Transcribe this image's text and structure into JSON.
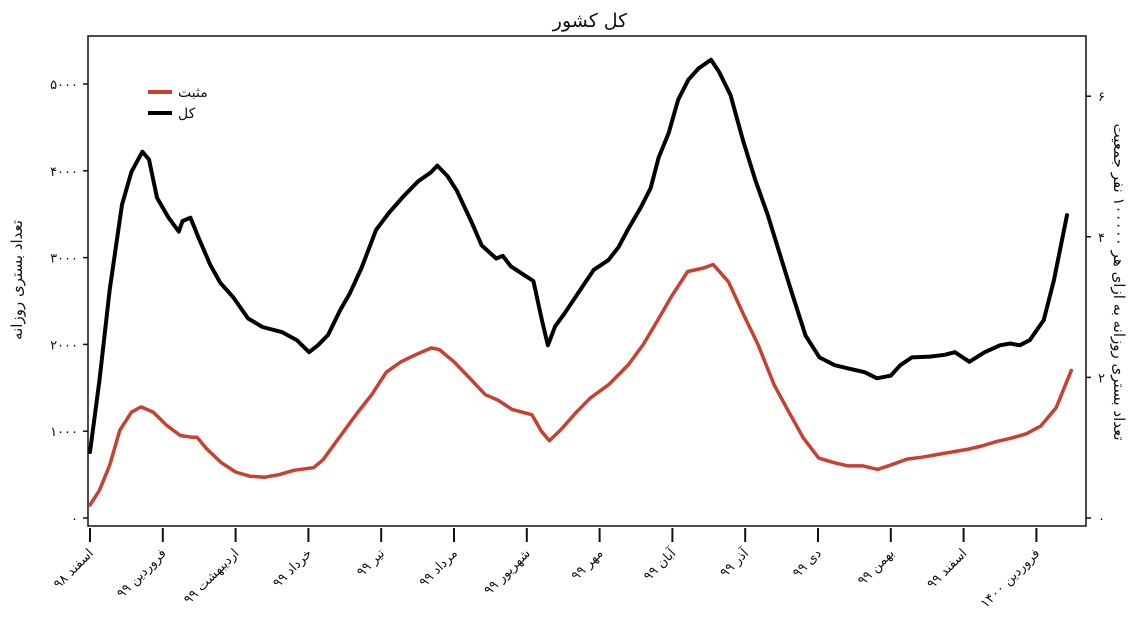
{
  "chart_data": {
    "type": "line",
    "title": "کل کشور",
    "xlabel": "",
    "ylabel": "تعداد بستری روزانه",
    "ylabel_right": "تعداد بستری روزانه به ازای هر ۱۰۰۰۰۰ نفر جمعیت",
    "ylim": [
      0,
      5600
    ],
    "ylim_right": [
      0,
      6.9
    ],
    "yticks": [
      {
        "value": 0,
        "label": "۰"
      },
      {
        "value": 1000,
        "label": "۱۰۰۰"
      },
      {
        "value": 2000,
        "label": "۲۰۰۰"
      },
      {
        "value": 3000,
        "label": "۳۰۰۰"
      },
      {
        "value": 4000,
        "label": "۴۰۰۰"
      },
      {
        "value": 5000,
        "label": "۵۰۰۰"
      }
    ],
    "yticks_right": [
      {
        "value": 0,
        "label": "۰"
      },
      {
        "value": 2,
        "label": "۲"
      },
      {
        "value": 4,
        "label": "۴"
      },
      {
        "value": 6,
        "label": "۶"
      }
    ],
    "categories": [
      "اسفند ۹۸",
      "فروردین ۹۹",
      "اردیبهشت ۹۹",
      "خرداد ۹۹",
      "تیر ۹۹",
      "مرداد ۹۹",
      "شهریور ۹۹",
      "مهر ۹۹",
      "آبان ۹۹",
      "آذر ۹۹",
      "دی ۹۹",
      "بهمن ۹۹",
      "اسفند ۹۹",
      "فروردین ۱۴۰۰"
    ],
    "grid": false,
    "legend_position": "upper left",
    "series": [
      {
        "name": "مثبت",
        "color": "#c8402f",
        "x_month_index": [
          0,
          0.13,
          0.27,
          0.41,
          0.57,
          0.7,
          0.87,
          1.05,
          1.24,
          1.41,
          1.47,
          1.6,
          1.8,
          2.0,
          2.2,
          2.4,
          2.6,
          2.8,
          3.07,
          3.2,
          3.4,
          3.67,
          3.87,
          4.07,
          4.27,
          4.47,
          4.69,
          4.8,
          5.0,
          5.24,
          5.43,
          5.6,
          5.8,
          6.07,
          6.2,
          6.31,
          6.47,
          6.67,
          6.87,
          7.13,
          7.4,
          7.6,
          7.8,
          8.0,
          8.21,
          8.43,
          8.56,
          8.77,
          8.98,
          9.18,
          9.4,
          9.6,
          9.8,
          10.01,
          10.21,
          10.41,
          10.62,
          10.82,
          11.03,
          11.23,
          11.43,
          11.63,
          11.84,
          12.05,
          12.25,
          12.45,
          12.66,
          12.86,
          13.06,
          13.27,
          13.48
        ],
        "values": [
          150,
          320,
          610,
          1010,
          1220,
          1280,
          1220,
          1070,
          950,
          930,
          930,
          800,
          640,
          530,
          480,
          470,
          500,
          550,
          580,
          670,
          900,
          1210,
          1420,
          1680,
          1800,
          1880,
          1960,
          1940,
          1800,
          1590,
          1420,
          1360,
          1250,
          1190,
          1000,
          890,
          1020,
          1210,
          1380,
          1540,
          1770,
          2000,
          2280,
          2570,
          2840,
          2880,
          2920,
          2720,
          2340,
          1990,
          1530,
          1220,
          920,
          690,
          640,
          600,
          600,
          560,
          620,
          680,
          700,
          730,
          760,
          790,
          830,
          880,
          920,
          970,
          1060,
          1270,
          1700
        ]
      },
      {
        "name": "کل",
        "color": "#000000",
        "x_month_index": [
          0,
          0.13,
          0.27,
          0.44,
          0.57,
          0.72,
          0.81,
          0.92,
          1.08,
          1.22,
          1.27,
          1.38,
          1.49,
          1.65,
          1.79,
          1.97,
          2.17,
          2.37,
          2.64,
          2.84,
          3.01,
          3.13,
          3.27,
          3.44,
          3.57,
          3.73,
          3.93,
          4.11,
          4.31,
          4.51,
          4.68,
          4.77,
          4.91,
          5.04,
          5.24,
          5.38,
          5.58,
          5.67,
          5.78,
          5.98,
          6.09,
          6.21,
          6.29,
          6.39,
          6.52,
          6.72,
          6.92,
          7.12,
          7.26,
          7.4,
          7.56,
          7.7,
          7.81,
          7.95,
          8.08,
          8.22,
          8.36,
          8.53,
          8.64,
          8.8,
          8.97,
          9.14,
          9.31,
          9.48,
          9.65,
          9.83,
          10.02,
          10.23,
          10.43,
          10.64,
          10.81,
          11.0,
          11.13,
          11.29,
          11.54,
          11.74,
          11.88,
          12.08,
          12.29,
          12.5,
          12.64,
          12.77,
          12.91,
          13.1,
          13.24,
          13.42
        ],
        "values": [
          760,
          1590,
          2630,
          3610,
          3990,
          4220,
          4130,
          3690,
          3460,
          3300,
          3420,
          3460,
          3230,
          2920,
          2710,
          2540,
          2300,
          2200,
          2140,
          2050,
          1910,
          1990,
          2110,
          2400,
          2590,
          2880,
          3320,
          3520,
          3710,
          3880,
          3980,
          4060,
          3940,
          3770,
          3410,
          3140,
          2990,
          3020,
          2900,
          2790,
          2730,
          2270,
          1990,
          2210,
          2360,
          2610,
          2860,
          2970,
          3120,
          3340,
          3570,
          3800,
          4150,
          4440,
          4820,
          5050,
          5180,
          5280,
          5140,
          4870,
          4350,
          3890,
          3490,
          3030,
          2570,
          2100,
          1850,
          1760,
          1720,
          1680,
          1610,
          1640,
          1760,
          1850,
          1860,
          1880,
          1910,
          1800,
          1910,
          1990,
          2010,
          1990,
          2050,
          2280,
          2740,
          3490
        ]
      }
    ]
  },
  "legend": {
    "items": [
      {
        "label": "مثبت",
        "color": "#c8402f"
      },
      {
        "label": "کل",
        "color": "#000000"
      }
    ]
  }
}
